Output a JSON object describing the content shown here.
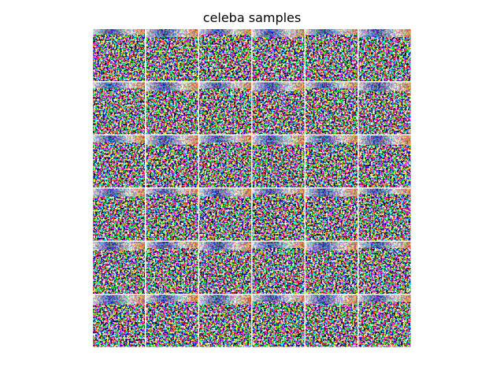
{
  "title": "celeba samples"
}
